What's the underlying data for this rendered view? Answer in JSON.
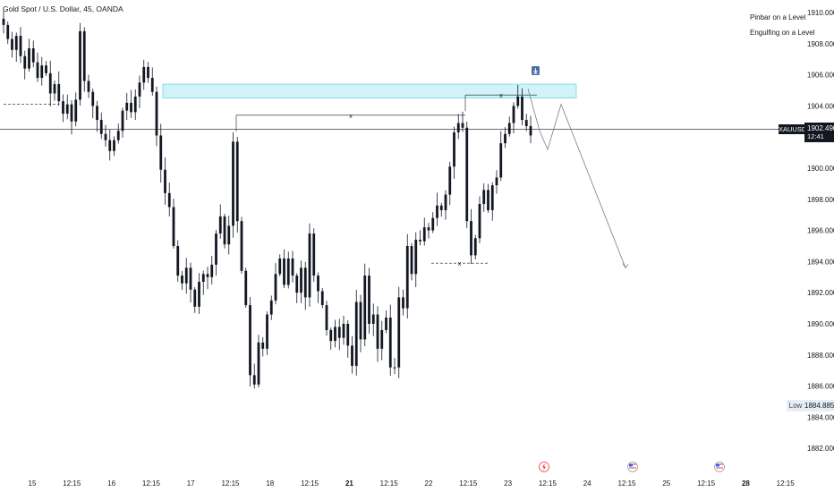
{
  "header": {
    "title": "Gold Spot / U.S. Dollar, 45, OANDA"
  },
  "legend": [
    {
      "label": "Pinbar on a Level"
    },
    {
      "label": "Engulfing on a Level"
    }
  ],
  "price_tag": {
    "symbol": "XAUUSD",
    "price": "1902.490",
    "countdown": "12:41"
  },
  "low_tag": {
    "label": "Low",
    "price": "1884.885"
  },
  "colors": {
    "candle": "#131722",
    "zone_fill": "#b2ebf2",
    "zone_border": "#4dd0e1",
    "projection": "#787b86"
  },
  "chart_data": {
    "type": "candlestick",
    "symbol": "XAUUSD",
    "y_ticks": [
      1882,
      1884,
      1886,
      1888,
      1890,
      1892,
      1894,
      1896,
      1898,
      1900,
      1902,
      1904,
      1906,
      1908,
      1910
    ],
    "y_tick_labels": [
      "1882.000",
      "1884.000",
      "1886.000",
      "1888.000",
      "1890.000",
      "1892.000",
      "1894.000",
      "1896.000",
      "1898.000",
      "1900.000",
      "1902.000",
      "1904.000",
      "1906.000",
      "1908.000",
      "1910.000"
    ],
    "ylim": [
      1881.4,
      1910.4
    ],
    "x_labels": [
      "15",
      "12:15",
      "16",
      "12:15",
      "17",
      "12:15",
      "18",
      "12:15",
      "21",
      "12:15",
      "22",
      "12:15",
      "23",
      "12:15",
      "24",
      "12:15",
      "25",
      "12:15",
      "28",
      "12:15"
    ],
    "x_label_bold": [
      "21",
      "28"
    ],
    "events": [
      "lightning-icon",
      "us-flag-icon",
      "us-flag-icon"
    ],
    "current_price": 1902.49,
    "low_price": 1884.885,
    "resistance_zone": {
      "top": 1905.4,
      "bottom": 1904.5
    },
    "levels": [
      {
        "price": 1904.1,
        "style": "dashed",
        "label": ""
      },
      {
        "price": 1903.4,
        "style": "solid",
        "label": "x"
      },
      {
        "price": 1904.7,
        "style": "solid",
        "label": "x"
      },
      {
        "price": 1893.9,
        "style": "dashed",
        "label": "x"
      }
    ],
    "projection_path": [
      1905.1,
      1902.4,
      1901.2,
      1904.1,
      1893.6
    ],
    "closes": [
      1909.2,
      1908.3,
      1907.6,
      1908.5,
      1907.2,
      1906.4,
      1907.7,
      1906.8,
      1905.8,
      1906.6,
      1906.1,
      1904.8,
      1905.4,
      1904.3,
      1903.5,
      1904.1,
      1903.0,
      1904.4,
      1908.8,
      1905.6,
      1904.9,
      1904.0,
      1903.1,
      1902.2,
      1901.8,
      1901.1,
      1901.8,
      1902.4,
      1903.7,
      1904.2,
      1903.6,
      1904.6,
      1905.5,
      1906.5,
      1905.8,
      1904.9,
      1902.1,
      1899.9,
      1898.4,
      1897.5,
      1895.0,
      1893.1,
      1892.6,
      1893.6,
      1892.2,
      1891.1,
      1892.7,
      1893.2,
      1893.0,
      1893.8,
      1895.8,
      1896.9,
      1895.1,
      1896.3,
      1901.7,
      1896.6,
      1893.4,
      1891.2,
      1886.7,
      1886.1,
      1888.8,
      1888.4,
      1890.6,
      1891.5,
      1893.2,
      1894.2,
      1892.5,
      1894.2,
      1893.1,
      1892.0,
      1893.6,
      1891.7,
      1895.8,
      1893.1,
      1892.1,
      1891.2,
      1889.6,
      1888.9,
      1889.8,
      1889.1,
      1890.0,
      1888.6,
      1887.3,
      1891.4,
      1889.0,
      1893.1,
      1890.0,
      1890.6,
      1888.4,
      1889.6,
      1890.4,
      1887.2,
      1887.2,
      1891.7,
      1891.0,
      1895.0,
      1893.2,
      1895.4,
      1895.3,
      1896.2,
      1896.0,
      1896.8,
      1897.6,
      1897.3,
      1898.3,
      1900.1,
      1902.3,
      1902.9,
      1902.6,
      1896.6,
      1894.4,
      1895.5,
      1897.7,
      1898.6,
      1897.3,
      1898.9,
      1899.4,
      1901.6,
      1902.2,
      1902.9,
      1904.0,
      1904.6,
      1903.1,
      1902.7,
      1902.1
    ]
  }
}
